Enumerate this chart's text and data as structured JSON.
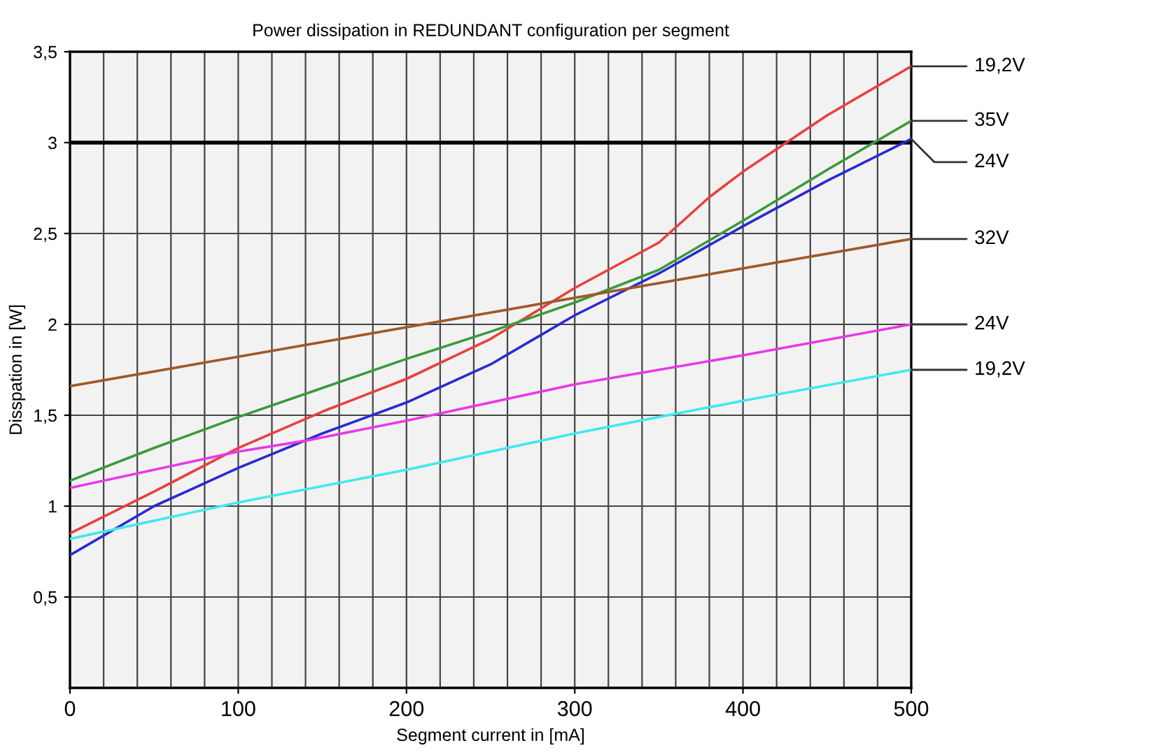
{
  "chart_data": {
    "type": "line",
    "title": "Power dissipation in REDUNDANT configuration per segment",
    "xlabel": "Segment current in [mA]",
    "ylabel": "Disspation in [W]",
    "xlim": [
      0,
      500
    ],
    "ylim": [
      0,
      3.5
    ],
    "xticks": [
      0,
      100,
      200,
      300,
      400,
      500
    ],
    "yticks": [
      {
        "value": 0.5,
        "label": "0,5"
      },
      {
        "value": 1,
        "label": "1"
      },
      {
        "value": 1.5,
        "label": "1,5"
      },
      {
        "value": 2,
        "label": "2"
      },
      {
        "value": 2.5,
        "label": "2,5"
      },
      {
        "value": 3,
        "label": "3"
      },
      {
        "value": 3.5,
        "label": "3,5"
      }
    ],
    "grid": true,
    "legend": false,
    "line_style": "solid",
    "marker": "none",
    "ref_lines": [
      {
        "axis": "y",
        "value": 3,
        "label": null,
        "color": "#000000"
      }
    ],
    "series": [
      {
        "name": "19,2V",
        "color": "#e8413c",
        "x": [
          0,
          50,
          100,
          150,
          200,
          250,
          300,
          350,
          380,
          400,
          450,
          500
        ],
        "values": [
          0.85,
          1.08,
          1.32,
          1.52,
          1.7,
          1.92,
          2.2,
          2.45,
          2.7,
          2.84,
          3.15,
          3.42
        ]
      },
      {
        "name": "35V",
        "color": "#3a9a3a",
        "x": [
          0,
          50,
          100,
          150,
          200,
          250,
          300,
          350,
          400,
          450,
          500
        ],
        "values": [
          1.14,
          1.32,
          1.49,
          1.65,
          1.81,
          1.96,
          2.12,
          2.3,
          2.57,
          2.85,
          3.12
        ]
      },
      {
        "name": "24V",
        "color": "#2a2ad0",
        "x": [
          0,
          50,
          100,
          150,
          200,
          250,
          300,
          350,
          400,
          450,
          500
        ],
        "values": [
          0.73,
          1.0,
          1.21,
          1.4,
          1.57,
          1.78,
          2.05,
          2.28,
          2.54,
          2.79,
          3.02
        ]
      },
      {
        "name": "32V",
        "color": "#a0582a",
        "x": [
          0,
          500
        ],
        "values": [
          1.66,
          2.47
        ]
      },
      {
        "name": "24V",
        "color": "#e838e8",
        "x": [
          0,
          50,
          100,
          140,
          200,
          300,
          400,
          500
        ],
        "values": [
          1.1,
          1.2,
          1.3,
          1.36,
          1.47,
          1.67,
          1.83,
          2.0
        ]
      },
      {
        "name": "19,2V",
        "color": "#40e8f0",
        "x": [
          0,
          100,
          200,
          300,
          400,
          500
        ],
        "values": [
          0.82,
          1.02,
          1.2,
          1.4,
          1.58,
          1.75
        ]
      }
    ]
  }
}
